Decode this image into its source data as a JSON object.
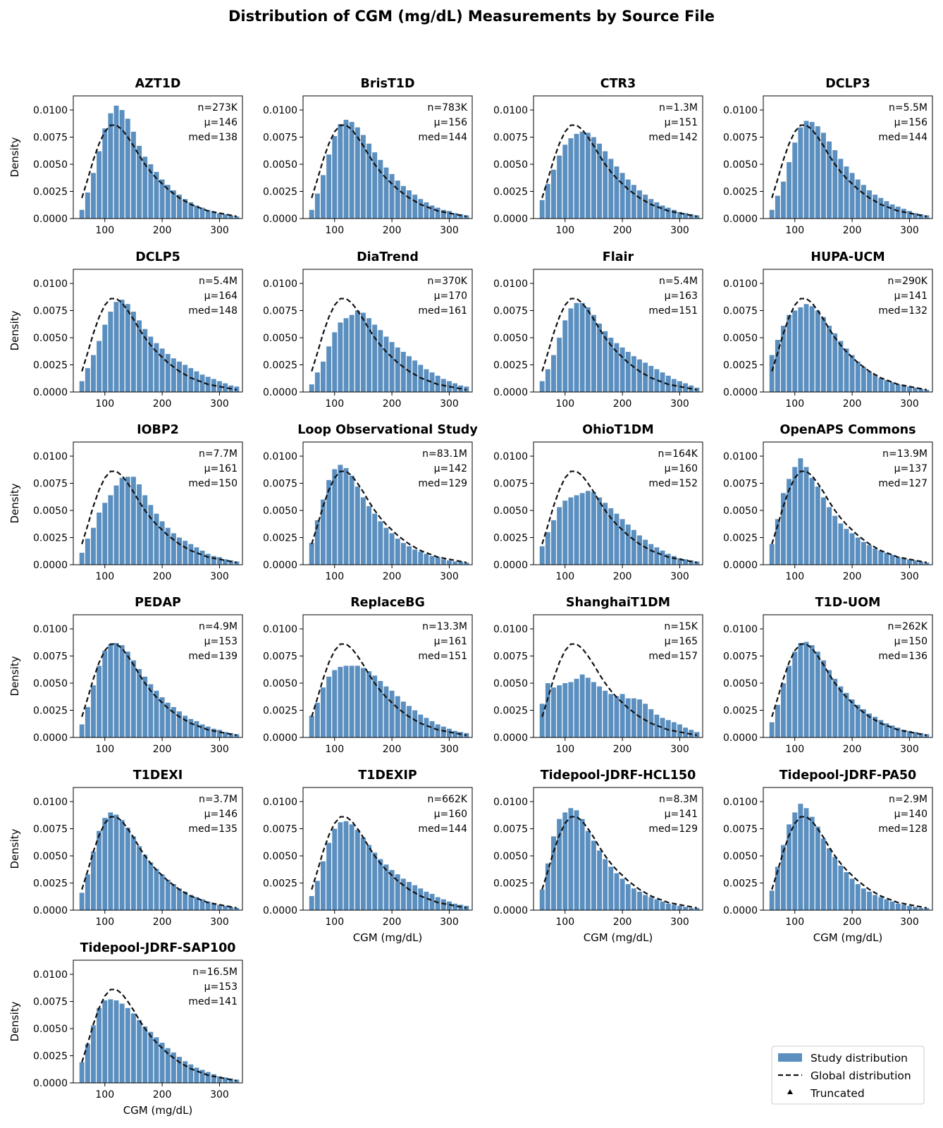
{
  "title": "Distribution of CGM (mg/dL) Measurements by Source File",
  "colors": {
    "bar": "#5b8fbf",
    "global_line": "#111111"
  },
  "chart_data": {
    "type": "bar",
    "layout": "small-multiples",
    "xlabel": "CGM (mg/dL)",
    "ylabel": "Density",
    "xlim": [
      45,
      340
    ],
    "ylim": [
      0,
      0.0113
    ],
    "xticks": [
      100,
      200,
      300
    ],
    "xtick_labels": [
      "100",
      "200",
      "300"
    ],
    "yticks": [
      0,
      0.0025,
      0.005,
      0.0075,
      0.01
    ],
    "ytick_labels": [
      "0.0000",
      "0.0025",
      "0.0050",
      "0.0075",
      "0.0100"
    ],
    "bin_centers": [
      60,
      70,
      80,
      90,
      100,
      110,
      120,
      130,
      140,
      150,
      160,
      170,
      180,
      190,
      200,
      210,
      220,
      230,
      240,
      250,
      260,
      270,
      280,
      290,
      300,
      310,
      320,
      330
    ],
    "global_distribution": [
      0.0019,
      0.0036,
      0.0054,
      0.0069,
      0.008,
      0.0086,
      0.0086,
      0.0082,
      0.0075,
      0.0067,
      0.0058,
      0.005,
      0.0043,
      0.0037,
      0.0032,
      0.0027,
      0.0023,
      0.0019,
      0.0016,
      0.0013,
      0.0011,
      0.0009,
      0.0007,
      0.0006,
      0.0005,
      0.0004,
      0.0003,
      0.0002
    ],
    "legend": {
      "position": "lower-right",
      "entries": [
        "Study distribution",
        "Global distribution",
        "Truncated"
      ]
    },
    "panels": [
      {
        "title": "AZT1D",
        "n": "n=273K",
        "mu": "μ=146",
        "med": "med=138",
        "values": [
          0.0008,
          0.0024,
          0.0042,
          0.0062,
          0.0083,
          0.0097,
          0.0104,
          0.01,
          0.0092,
          0.008,
          0.0067,
          0.0057,
          0.005,
          0.0043,
          0.0036,
          0.0031,
          0.0026,
          0.0022,
          0.0018,
          0.0015,
          0.0012,
          0.001,
          0.0008,
          0.0006,
          0.0005,
          0.0004,
          0.0003,
          0.0002
        ]
      },
      {
        "title": "BrisT1D",
        "n": "n=783K",
        "mu": "μ=156",
        "med": "med=144",
        "values": [
          0.0008,
          0.0023,
          0.004,
          0.0059,
          0.0076,
          0.0087,
          0.0091,
          0.0089,
          0.0084,
          0.0077,
          0.0069,
          0.0061,
          0.0054,
          0.0047,
          0.0041,
          0.0035,
          0.003,
          0.0026,
          0.0022,
          0.0018,
          0.0015,
          0.0012,
          0.001,
          0.0008,
          0.0007,
          0.0005,
          0.0004,
          0.0003
        ]
      },
      {
        "title": "CTR3",
        "n": "n=1.3M",
        "mu": "μ=151",
        "med": "med=142",
        "values": [
          0.0017,
          0.0032,
          0.0045,
          0.0058,
          0.0068,
          0.0074,
          0.0078,
          0.008,
          0.0079,
          0.0075,
          0.0069,
          0.0062,
          0.0055,
          0.0048,
          0.0042,
          0.0036,
          0.0031,
          0.0026,
          0.0022,
          0.0018,
          0.0015,
          0.0012,
          0.001,
          0.0008,
          0.0006,
          0.0005,
          0.0004,
          0.0003
        ]
      },
      {
        "title": "DCLP3",
        "n": "n=5.5M",
        "mu": "μ=156",
        "med": "med=144",
        "values": [
          0.0008,
          0.0021,
          0.0034,
          0.0052,
          0.007,
          0.0084,
          0.009,
          0.0089,
          0.0085,
          0.0079,
          0.0071,
          0.0063,
          0.0055,
          0.0048,
          0.0042,
          0.0036,
          0.0031,
          0.0026,
          0.0022,
          0.0019,
          0.0016,
          0.0013,
          0.0011,
          0.0009,
          0.0007,
          0.0005,
          0.0004,
          0.0003
        ]
      },
      {
        "title": "DCLP5",
        "n": "n=5.4M",
        "mu": "μ=164",
        "med": "med=148",
        "values": [
          0.001,
          0.0022,
          0.0034,
          0.0047,
          0.0062,
          0.0074,
          0.0083,
          0.0085,
          0.0081,
          0.0074,
          0.0066,
          0.0058,
          0.0051,
          0.0045,
          0.004,
          0.0035,
          0.0031,
          0.0028,
          0.0025,
          0.0022,
          0.0019,
          0.0016,
          0.0014,
          0.0012,
          0.001,
          0.0008,
          0.0006,
          0.0005
        ]
      },
      {
        "title": "DiaTrend",
        "n": "n=370K",
        "mu": "μ=170",
        "med": "med=161",
        "values": [
          0.0007,
          0.0018,
          0.0028,
          0.0042,
          0.0055,
          0.0064,
          0.0068,
          0.0071,
          0.0075,
          0.0073,
          0.0068,
          0.0062,
          0.0057,
          0.0051,
          0.0046,
          0.0041,
          0.0037,
          0.0033,
          0.0029,
          0.0025,
          0.0021,
          0.0018,
          0.0015,
          0.0012,
          0.001,
          0.0008,
          0.0006,
          0.0005
        ]
      },
      {
        "title": "Flair",
        "n": "n=5.4M",
        "mu": "μ=163",
        "med": "med=151",
        "values": [
          0.001,
          0.0021,
          0.0034,
          0.005,
          0.0066,
          0.0077,
          0.0082,
          0.0082,
          0.0078,
          0.0071,
          0.0063,
          0.0056,
          0.005,
          0.0045,
          0.0041,
          0.0037,
          0.0033,
          0.003,
          0.0027,
          0.0024,
          0.0021,
          0.0018,
          0.0015,
          0.0012,
          0.001,
          0.0008,
          0.0006,
          0.0004
        ]
      },
      {
        "title": "HUPA-UCM",
        "n": "n=290K",
        "mu": "μ=141",
        "med": "med=132",
        "values": [
          0.0034,
          0.0048,
          0.0061,
          0.0071,
          0.0075,
          0.0078,
          0.0081,
          0.0079,
          0.0075,
          0.0069,
          0.0061,
          0.0054,
          0.0047,
          0.004,
          0.0034,
          0.0028,
          0.0023,
          0.0019,
          0.0016,
          0.0013,
          0.0011,
          0.0009,
          0.0007,
          0.0006,
          0.0005,
          0.0004,
          0.0003,
          0.0002
        ]
      },
      {
        "title": "IOBP2",
        "n": "n=7.7M",
        "mu": "μ=161",
        "med": "med=150",
        "values": [
          0.0011,
          0.0024,
          0.0034,
          0.0048,
          0.0057,
          0.0064,
          0.0073,
          0.008,
          0.0081,
          0.0081,
          0.0074,
          0.0064,
          0.0055,
          0.0047,
          0.004,
          0.0034,
          0.0029,
          0.0025,
          0.0022,
          0.0019,
          0.0016,
          0.0013,
          0.001,
          0.0008,
          0.0007,
          0.0005,
          0.0004,
          0.0003
        ]
      },
      {
        "title": "Loop Observational Study",
        "n": "n=83.1M",
        "mu": "μ=142",
        "med": "med=129",
        "values": [
          0.002,
          0.0041,
          0.006,
          0.0078,
          0.0088,
          0.0092,
          0.0089,
          0.0082,
          0.0072,
          0.0062,
          0.0054,
          0.0047,
          0.004,
          0.0034,
          0.0029,
          0.0024,
          0.002,
          0.0017,
          0.0014,
          0.0012,
          0.001,
          0.0008,
          0.0007,
          0.0005,
          0.0004,
          0.0003,
          0.0003,
          0.0002
        ]
      },
      {
        "title": "OhioT1DM",
        "n": "n=164K",
        "mu": "μ=160",
        "med": "med=152",
        "values": [
          0.0017,
          0.003,
          0.0041,
          0.0053,
          0.0059,
          0.0062,
          0.0064,
          0.0066,
          0.0068,
          0.0067,
          0.0062,
          0.0057,
          0.0052,
          0.0047,
          0.0042,
          0.0037,
          0.0032,
          0.0027,
          0.0023,
          0.0019,
          0.0016,
          0.0013,
          0.001,
          0.0008,
          0.0006,
          0.0005,
          0.0004,
          0.0003
        ]
      },
      {
        "title": "OpenAPS Commons",
        "n": "n=13.9M",
        "mu": "μ=137",
        "med": "med=127",
        "values": [
          0.0019,
          0.0042,
          0.0066,
          0.0079,
          0.009,
          0.0098,
          0.009,
          0.008,
          0.0072,
          0.0062,
          0.0053,
          0.0045,
          0.0038,
          0.0033,
          0.0029,
          0.0025,
          0.0021,
          0.0018,
          0.0015,
          0.0013,
          0.0011,
          0.0009,
          0.0007,
          0.0006,
          0.0005,
          0.0004,
          0.0003,
          0.0002
        ]
      },
      {
        "title": "PEDAP",
        "n": "n=4.9M",
        "mu": "μ=153",
        "med": "med=139",
        "values": [
          0.0012,
          0.0028,
          0.0048,
          0.0066,
          0.008,
          0.0086,
          0.0087,
          0.0085,
          0.0079,
          0.0071,
          0.0063,
          0.0056,
          0.0049,
          0.0043,
          0.0037,
          0.0032,
          0.0028,
          0.0024,
          0.002,
          0.0017,
          0.0015,
          0.0012,
          0.001,
          0.0008,
          0.0007,
          0.0005,
          0.0004,
          0.0003
        ]
      },
      {
        "title": "ReplaceBG",
        "n": "n=13.3M",
        "mu": "μ=161",
        "med": "med=151",
        "values": [
          0.002,
          0.0032,
          0.0046,
          0.0056,
          0.0062,
          0.0065,
          0.0066,
          0.0066,
          0.0066,
          0.0064,
          0.0061,
          0.0057,
          0.0052,
          0.0047,
          0.0043,
          0.0038,
          0.0033,
          0.0029,
          0.0025,
          0.0021,
          0.0018,
          0.0015,
          0.0012,
          0.001,
          0.0008,
          0.0006,
          0.0005,
          0.0004
        ]
      },
      {
        "title": "ShanghaiT1DM",
        "n": "n=15K",
        "mu": "μ=165",
        "med": "med=157",
        "values": [
          0.0031,
          0.005,
          0.0046,
          0.0048,
          0.005,
          0.0051,
          0.0054,
          0.0058,
          0.0055,
          0.0051,
          0.0047,
          0.0043,
          0.004,
          0.0038,
          0.004,
          0.0036,
          0.0036,
          0.0035,
          0.0031,
          0.0026,
          0.0021,
          0.0018,
          0.0016,
          0.0014,
          0.0012,
          0.0009,
          0.0007,
          0.0005
        ]
      },
      {
        "title": "T1D-UOM",
        "n": "n=262K",
        "mu": "μ=150",
        "med": "med=136",
        "values": [
          0.0014,
          0.003,
          0.005,
          0.0066,
          0.0079,
          0.0087,
          0.0088,
          0.0085,
          0.0079,
          0.0071,
          0.0062,
          0.0054,
          0.0047,
          0.0041,
          0.0035,
          0.003,
          0.0026,
          0.0022,
          0.0019,
          0.0016,
          0.0013,
          0.0011,
          0.0009,
          0.0007,
          0.0006,
          0.0005,
          0.0004,
          0.0003
        ]
      },
      {
        "title": "T1DEXI",
        "n": "n=3.7M",
        "mu": "μ=146",
        "med": "med=135",
        "values": [
          0.0016,
          0.0033,
          0.0054,
          0.0073,
          0.0085,
          0.009,
          0.0088,
          0.0083,
          0.0076,
          0.0068,
          0.0059,
          0.0051,
          0.0044,
          0.0038,
          0.0033,
          0.0028,
          0.0024,
          0.002,
          0.0017,
          0.0014,
          0.0012,
          0.001,
          0.0008,
          0.0006,
          0.0005,
          0.0004,
          0.0003,
          0.0002
        ]
      },
      {
        "title": "T1DEXIP",
        "n": "n=662K",
        "mu": "μ=160",
        "med": "med=144",
        "values": [
          0.0013,
          0.0027,
          0.0045,
          0.0062,
          0.0075,
          0.0081,
          0.0082,
          0.0079,
          0.0074,
          0.0067,
          0.006,
          0.0053,
          0.0047,
          0.0042,
          0.0037,
          0.0033,
          0.0029,
          0.0026,
          0.0023,
          0.002,
          0.0017,
          0.0015,
          0.0012,
          0.001,
          0.0008,
          0.0006,
          0.0005,
          0.0004
        ]
      },
      {
        "title": "Tidepool-JDRF-HCL150",
        "n": "n=8.3M",
        "mu": "μ=141",
        "med": "med=129",
        "values": [
          0.0019,
          0.0043,
          0.0068,
          0.0084,
          0.009,
          0.0094,
          0.0092,
          0.0084,
          0.0073,
          0.0064,
          0.0055,
          0.0047,
          0.004,
          0.0034,
          0.0029,
          0.0024,
          0.002,
          0.0017,
          0.0014,
          0.0012,
          0.001,
          0.0008,
          0.0006,
          0.0005,
          0.0004,
          0.0003,
          0.0002,
          0.0002
        ]
      },
      {
        "title": "Tidepool-JDRF-PA50",
        "n": "n=2.9M",
        "mu": "μ=140",
        "med": "med=128",
        "values": [
          0.0018,
          0.004,
          0.006,
          0.0079,
          0.009,
          0.0098,
          0.0094,
          0.0086,
          0.0077,
          0.0066,
          0.0057,
          0.0049,
          0.0041,
          0.0035,
          0.0029,
          0.0024,
          0.002,
          0.0017,
          0.0014,
          0.0012,
          0.001,
          0.0008,
          0.0006,
          0.0005,
          0.0004,
          0.0003,
          0.0002,
          0.0002
        ]
      },
      {
        "title": "Tidepool-JDRF-SAP100",
        "n": "n=16.5M",
        "mu": "μ=153",
        "med": "med=141",
        "values": [
          0.0019,
          0.0036,
          0.0053,
          0.0069,
          0.0076,
          0.0077,
          0.0076,
          0.0073,
          0.0069,
          0.0064,
          0.0058,
          0.0052,
          0.0047,
          0.0042,
          0.0037,
          0.0032,
          0.0028,
          0.0024,
          0.002,
          0.0017,
          0.0014,
          0.0012,
          0.001,
          0.0008,
          0.0006,
          0.0005,
          0.0004,
          0.0003
        ]
      }
    ]
  }
}
